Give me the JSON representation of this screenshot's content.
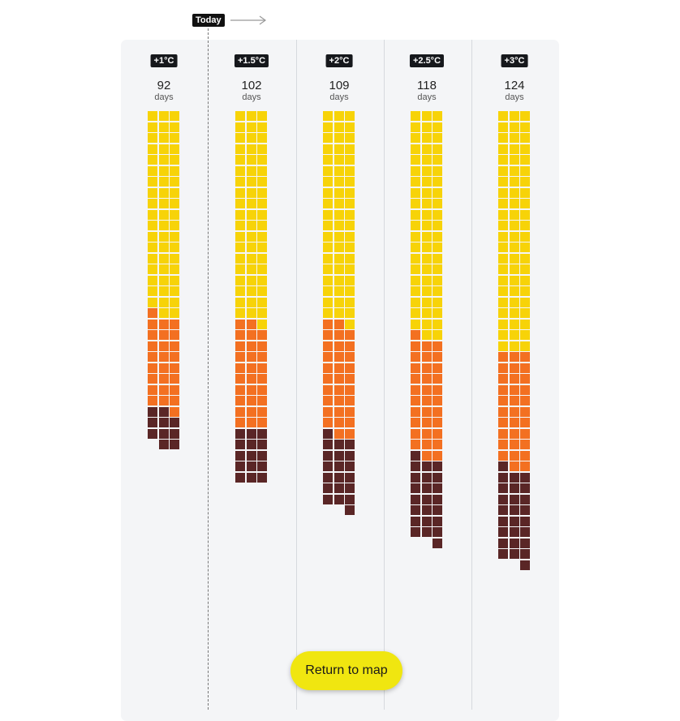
{
  "today_label": "Today",
  "return_button": "Return to map",
  "colors": {
    "yellow": "#f7d308",
    "orange": "#f37021",
    "dark": "#5a2626",
    "panel": "#f4f5f7"
  },
  "chart_data": {
    "type": "waffle",
    "unit": "days",
    "series_order": [
      "yellow",
      "orange",
      "dark"
    ],
    "columns": [
      {
        "label": "+1°C",
        "total": 92,
        "values": [
          56,
          26,
          10
        ]
      },
      {
        "label": "+1.5°C",
        "total": 102,
        "values": [
          58,
          29,
          15
        ]
      },
      {
        "label": "+2°C",
        "total": 109,
        "values": [
          58,
          31,
          20
        ]
      },
      {
        "label": "+2.5°C",
        "total": 118,
        "values": [
          62,
          33,
          23
        ]
      },
      {
        "label": "+3°C",
        "total": 124,
        "values": [
          66,
          32,
          26
        ]
      }
    ]
  }
}
